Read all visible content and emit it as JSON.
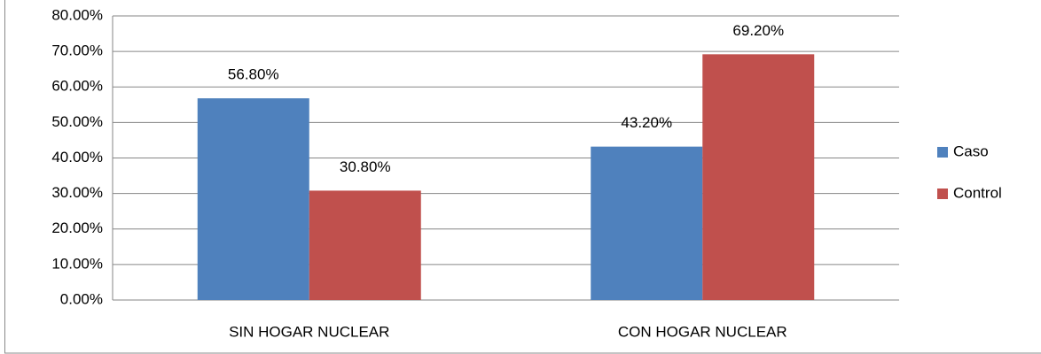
{
  "chart_data": {
    "type": "bar",
    "categories": [
      "SIN HOGAR NUCLEAR",
      "CON HOGAR NUCLEAR"
    ],
    "series": [
      {
        "name": "Caso",
        "color": "#4f81bd",
        "values": [
          56.8,
          43.2
        ],
        "value_labels": [
          "56.80%",
          "43.20%"
        ],
        "value_label_colors": [
          "#ff0000",
          "#000000"
        ]
      },
      {
        "name": "Control",
        "color": "#c0504d",
        "values": [
          30.8,
          69.2
        ],
        "value_labels": [
          "30.80%",
          "69.20%"
        ],
        "value_label_colors": [
          "#000000",
          "#ff0000"
        ]
      }
    ],
    "ylim": [
      0,
      80
    ],
    "yticks": [
      {
        "value": 0,
        "label": "0.00%"
      },
      {
        "value": 10,
        "label": "10.00%"
      },
      {
        "value": 20,
        "label": "20.00%"
      },
      {
        "value": 30,
        "label": "30.00%"
      },
      {
        "value": 40,
        "label": "40.00%"
      },
      {
        "value": 50,
        "label": "50.00%"
      },
      {
        "value": 60,
        "label": "60.00%"
      },
      {
        "value": 70,
        "label": "70.00%"
      },
      {
        "value": 80,
        "label": "80.00%"
      }
    ],
    "grid": true,
    "legend": "right"
  }
}
